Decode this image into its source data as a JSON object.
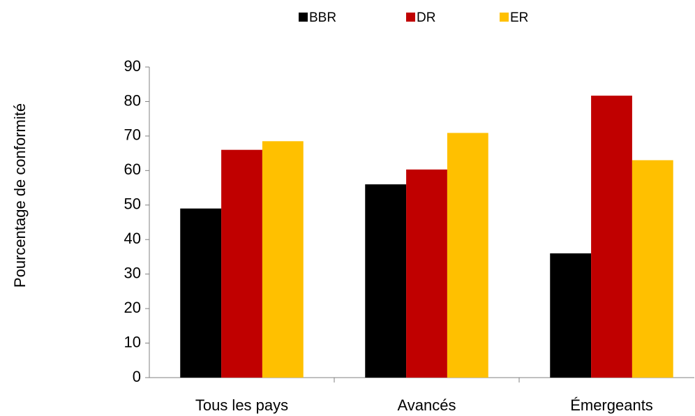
{
  "chart_data": {
    "type": "bar",
    "y_label": "Pourcentage de conformité",
    "categories": [
      "Tous les pays",
      "Avancés",
      "Émergeants"
    ],
    "series": [
      {
        "name": "BBR",
        "color": "#000000",
        "values": [
          49,
          56,
          36
        ]
      },
      {
        "name": "DR",
        "color": "#c00000",
        "values": [
          66,
          60.3,
          81.7
        ]
      },
      {
        "name": "ER",
        "color": "#ffc000",
        "values": [
          68.5,
          70.9,
          63
        ]
      }
    ],
    "ylim": [
      0,
      90
    ],
    "yticks": [
      0,
      10,
      20,
      30,
      40,
      50,
      60,
      70,
      80,
      90
    ],
    "legend": "top"
  }
}
